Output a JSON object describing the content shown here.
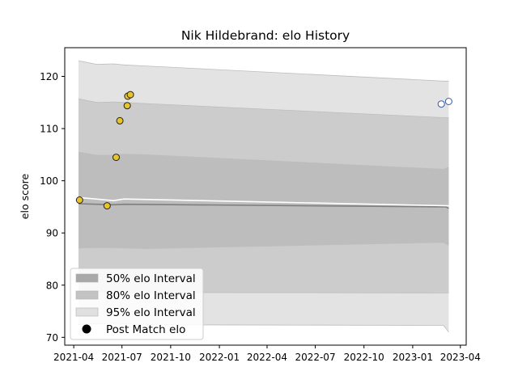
{
  "chart_data": {
    "type": "scatter",
    "title": "Nik Hildebrand: elo History",
    "xlabel": "",
    "ylabel": "elo score",
    "x_ticks": [
      "2021-04",
      "2021-07",
      "2021-10",
      "2022-01",
      "2022-04",
      "2022-07",
      "2022-10",
      "2023-01",
      "2023-04"
    ],
    "y_ticks": [
      70,
      80,
      90,
      100,
      110,
      120
    ],
    "xlim": [
      "2021-03-15",
      "2023-04-12"
    ],
    "ylim": [
      68.5,
      125.5
    ],
    "grid": false,
    "legend_position": "lower-left",
    "legend": [
      {
        "label": "50% elo Interval",
        "kind": "band",
        "color": "#a9a9a9"
      },
      {
        "label": "80% elo Interval",
        "kind": "band",
        "color": "#c3c3c3"
      },
      {
        "label": "95% elo Interval",
        "kind": "band",
        "color": "#e0e0e0"
      },
      {
        "label": "Post Match elo",
        "kind": "marker",
        "color": "#000000"
      }
    ],
    "bands": {
      "x": [
        "2021-04-10",
        "2021-05-15",
        "2021-06-15",
        "2021-07-05",
        "2021-08-15",
        "2023-02-28",
        "2023-03-10"
      ],
      "p95": {
        "upper": [
          123.0,
          122.3,
          122.4,
          122.2,
          122.0,
          119.1,
          119.1
        ],
        "lower": [
          72.5,
          72.6,
          72.7,
          72.6,
          72.4,
          72.3,
          71.0
        ]
      },
      "p80": {
        "upper": [
          115.7,
          115.0,
          115.1,
          115.0,
          114.8,
          112.1,
          112.1
        ],
        "lower": [
          78.5,
          78.7,
          78.8,
          78.7,
          78.6,
          78.5,
          78.5
        ]
      },
      "p50": {
        "upper": [
          105.5,
          104.9,
          104.9,
          105.1,
          105.0,
          102.2,
          102.6
        ],
        "lower": [
          87.1,
          87.2,
          87.2,
          87.1,
          87.0,
          88.2,
          87.6
        ]
      }
    },
    "median_line": {
      "x": [
        "2021-04-10",
        "2021-06-15",
        "2021-07-05",
        "2023-03-05",
        "2023-03-10"
      ],
      "y": [
        95.6,
        95.4,
        95.5,
        95.0,
        94.7
      ]
    },
    "mean_line": {
      "x": [
        "2021-04-10",
        "2021-06-15",
        "2021-07-05",
        "2023-03-10"
      ],
      "y": [
        96.8,
        96.2,
        96.5,
        95.2
      ]
    },
    "series": [
      {
        "name": "Post Match elo",
        "fill": "#e8c32a",
        "edge": "#222222",
        "points": [
          {
            "x": "2021-04-12",
            "y": 96.3
          },
          {
            "x": "2021-06-03",
            "y": 95.2
          },
          {
            "x": "2021-06-20",
            "y": 104.5
          },
          {
            "x": "2021-06-27",
            "y": 111.5
          },
          {
            "x": "2021-07-11",
            "y": 114.4
          },
          {
            "x": "2021-07-12",
            "y": 116.2
          },
          {
            "x": "2021-07-17",
            "y": 116.5
          }
        ]
      },
      {
        "name": "",
        "fill": "#ffffff",
        "edge": "#3a5ba0",
        "points": [
          {
            "x": "2023-02-24",
            "y": 114.7
          },
          {
            "x": "2023-03-10",
            "y": 115.2
          }
        ]
      }
    ]
  }
}
